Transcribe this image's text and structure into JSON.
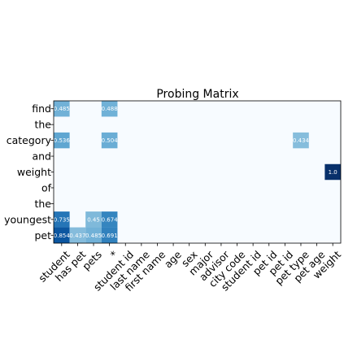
{
  "chart_data": {
    "type": "heatmap",
    "title": "Probing Matrix",
    "rows": [
      "find",
      "the",
      "category",
      "and",
      "weight",
      "of",
      "the",
      "youngest",
      "pet"
    ],
    "columns": [
      "student",
      "has pet",
      "pets",
      "*",
      "student id",
      "last name",
      "first name",
      "age",
      "sex",
      "major",
      "advisor",
      "city code",
      "student id",
      "pet id",
      "pet id",
      "pet type",
      "pet age",
      "weight"
    ],
    "cells": [
      {
        "row": 0,
        "col": 0,
        "value": 0.485,
        "label": "0.485"
      },
      {
        "row": 0,
        "col": 3,
        "value": 0.488,
        "label": "0.488"
      },
      {
        "row": 2,
        "col": 0,
        "value": 0.536,
        "label": "0.536"
      },
      {
        "row": 2,
        "col": 3,
        "value": 0.504,
        "label": "0.504"
      },
      {
        "row": 2,
        "col": 15,
        "value": 0.434,
        "label": "0.434"
      },
      {
        "row": 4,
        "col": 17,
        "value": 1.0,
        "label": "1.0"
      },
      {
        "row": 7,
        "col": 0,
        "value": 0.735,
        "label": "0.735"
      },
      {
        "row": 7,
        "col": 2,
        "value": 0.45,
        "label": "0.45"
      },
      {
        "row": 7,
        "col": 3,
        "value": 0.674,
        "label": "0.674"
      },
      {
        "row": 8,
        "col": 0,
        "value": 0.854,
        "label": "0.854"
      },
      {
        "row": 8,
        "col": 1,
        "value": 0.437,
        "label": "0.437"
      },
      {
        "row": 8,
        "col": 2,
        "value": 0.485,
        "label": "0.485"
      },
      {
        "row": 8,
        "col": 3,
        "value": 0.691,
        "label": "0.691"
      }
    ],
    "colormap": "Blues",
    "range": [
      0,
      1
    ],
    "background_color": "#f7fbff",
    "grid": false
  }
}
